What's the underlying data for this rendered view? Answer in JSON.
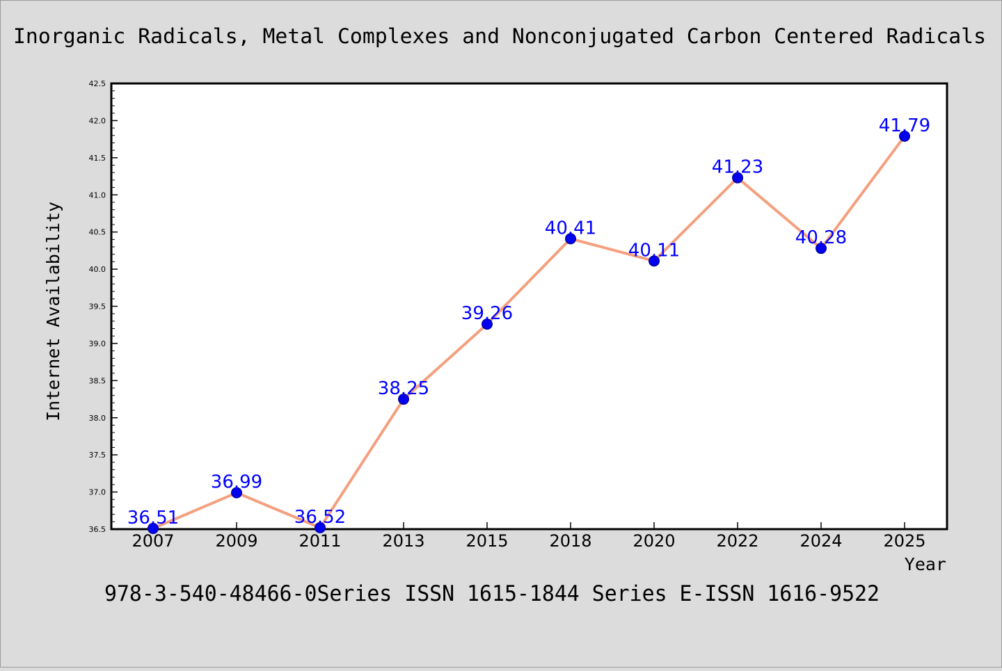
{
  "chart_data": {
    "type": "line",
    "title": "Inorganic Radicals, Metal Complexes and Nonconjugated Carbon Centered Radicals",
    "xlabel": "Year",
    "ylabel": "Internet Availability",
    "footer": "978-3-540-48466-0Series ISSN 1615-1844 Series E-ISSN 1616-9522",
    "categories": [
      "2007",
      "2009",
      "2011",
      "2013",
      "2015",
      "2018",
      "2020",
      "2022",
      "2024",
      "2025"
    ],
    "series": [
      {
        "values": [
          36.51,
          36.99,
          36.52,
          38.25,
          39.26,
          40.41,
          40.11,
          41.23,
          40.28,
          41.79
        ],
        "labels": [
          "36.51",
          "36.99",
          "36.52",
          "38.25",
          "39.26",
          "40.41",
          "40.11",
          "41.23",
          "40.28",
          "41.79"
        ]
      }
    ],
    "ylim": [
      36.5,
      42.5
    ],
    "yticks": [
      "36.5",
      "37.0",
      "37.5",
      "38.0",
      "38.5",
      "39.0",
      "39.5",
      "40.0",
      "40.5",
      "41.0",
      "41.5",
      "42.0",
      "42.5"
    ],
    "grid": false,
    "colors": {
      "line": "#f4a07f",
      "marker": "#0000ee",
      "marker_edge": "#000080",
      "data_label": "#0000ff",
      "axes": "#000000",
      "background": "#dcdcdc",
      "plot_background": "#ffffff"
    }
  }
}
